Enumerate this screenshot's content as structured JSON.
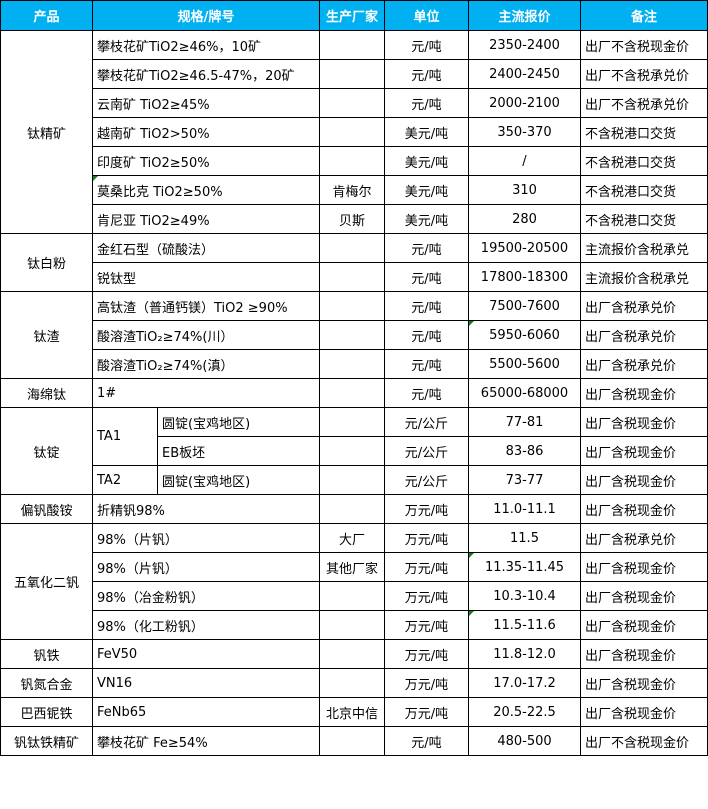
{
  "headers": [
    "产品",
    "规格/牌号",
    "生产厂家",
    "单位",
    "主流报价",
    "备注"
  ],
  "groups": [
    {
      "product": "钛精矿",
      "rows": [
        {
          "spec": "攀枝花矿TiO2≥46%，10矿",
          "maker": "",
          "unit": "元/吨",
          "price": "2350-2400",
          "note": "出厂不含税现金价"
        },
        {
          "spec": "攀枝花矿TiO2≥46.5-47%，20矿",
          "maker": "",
          "unit": "元/吨",
          "price": "2400-2450",
          "note": "出厂不含税承兑价"
        },
        {
          "spec": "云南矿 TiO2≥45%",
          "maker": "",
          "unit": "元/吨",
          "price": "2000-2100",
          "note": "出厂不含税承兑价"
        },
        {
          "spec": "越南矿 TiO2>50%",
          "maker": "",
          "unit": "美元/吨",
          "price": "350-370",
          "note": "不含税港口交货"
        },
        {
          "spec": "印度矿 TiO2≥50%",
          "maker": "",
          "unit": "美元/吨",
          "price": "/",
          "note": "不含税港口交货"
        },
        {
          "spec": "莫桑比克 TiO2≥50%",
          "maker": "肯梅尔",
          "unit": "美元/吨",
          "price": "310",
          "note": "不含税港口交货"
        },
        {
          "spec": "肯尼亚 TiO2≥49%",
          "maker": "贝斯",
          "unit": "美元/吨",
          "price": "280",
          "note": "不含税港口交货"
        }
      ]
    },
    {
      "product": "钛白粉",
      "rows": [
        {
          "spec": "金红石型（硫酸法）",
          "maker": "",
          "unit": "元/吨",
          "price": "19500-20500",
          "note": "主流报价含税承兑"
        },
        {
          "spec": "锐钛型",
          "maker": "",
          "unit": "元/吨",
          "price": "17800-18300",
          "note": "主流报价含税承兑"
        }
      ]
    },
    {
      "product": "钛渣",
      "rows": [
        {
          "spec": "高钛渣（普通钙镁）TiO2 ≥90%",
          "maker": "",
          "unit": "元/吨",
          "price": "7500-7600",
          "note": "出厂含税承兑价"
        },
        {
          "spec": "酸溶渣TiO₂≥74%(川）",
          "maker": "",
          "unit": "元/吨",
          "price": "5950-6060",
          "note": "出厂含税承兑价"
        },
        {
          "spec": "酸溶渣TiO₂≥74%(滇）",
          "maker": "",
          "unit": "元/吨",
          "price": "5500-5600",
          "note": "出厂含税承兑价"
        }
      ]
    },
    {
      "product": "海绵钛",
      "rows": [
        {
          "spec": "1#",
          "maker": "",
          "unit": "元/吨",
          "price": "65000-68000",
          "note": "出厂含税现金价"
        }
      ]
    },
    {
      "product": "钛锭",
      "rows": [
        {
          "spec": "TA1",
          "sub": "圆锭(宝鸡地区)",
          "unit": "元/公斤",
          "price": "77-81",
          "note": "出厂含税现金价"
        },
        {
          "spec": "TA1",
          "sub": "EB板坯",
          "unit": "元/公斤",
          "price": "83-86",
          "note": "出厂含税现金价"
        },
        {
          "spec": "TA2",
          "sub": "圆锭(宝鸡地区)",
          "unit": "元/公斤",
          "price": "73-77",
          "note": "出厂含税现金价"
        }
      ]
    },
    {
      "product": "偏钒酸铵",
      "rows": [
        {
          "spec": "折精钒98%",
          "maker": "",
          "unit": "万元/吨",
          "price": "11.0-11.1",
          "note": "出厂含税现金价"
        }
      ]
    },
    {
      "product": "五氧化二钒",
      "rows": [
        {
          "spec": "98%（片钒）",
          "maker": "大厂",
          "unit": "万元/吨",
          "price": "11.5",
          "note": "出厂含税承兑价"
        },
        {
          "spec": "98%（片钒）",
          "maker": "其他厂家",
          "unit": "万元/吨",
          "price": "11.35-11.45",
          "note": "出厂含税现金价"
        },
        {
          "spec": "98%（冶金粉钒）",
          "maker": "",
          "unit": "万元/吨",
          "price": "10.3-10.4",
          "note": "出厂含税现金价"
        },
        {
          "spec": "98%（化工粉钒）",
          "maker": "",
          "unit": "万元/吨",
          "price": "11.5-11.6",
          "note": "出厂含税现金价"
        }
      ]
    },
    {
      "product": "钒铁",
      "rows": [
        {
          "spec": "FeV50",
          "maker": "",
          "unit": "万元/吨",
          "price": "11.8-12.0",
          "note": "出厂含税现金价"
        }
      ]
    },
    {
      "product": "钒氮合金",
      "rows": [
        {
          "spec": "VN16",
          "maker": "",
          "unit": "万元/吨",
          "price": "17.0-17.2",
          "note": "出厂含税现金价"
        }
      ]
    },
    {
      "product": "巴西铌铁",
      "rows": [
        {
          "spec": "FeNb65",
          "maker": "北京中信",
          "unit": "万元/吨",
          "price": "20.5-22.5",
          "note": "出厂含税现金价"
        }
      ]
    },
    {
      "product": "钒钛铁精矿",
      "rows": [
        {
          "spec": "攀枝花矿 Fe≥54%",
          "maker": "",
          "unit": "元/吨",
          "price": "480-500",
          "note": "出厂不含税现金价"
        }
      ]
    }
  ],
  "colors": {
    "header_bg": "#00b0f0",
    "header_text": "#ffffff"
  }
}
